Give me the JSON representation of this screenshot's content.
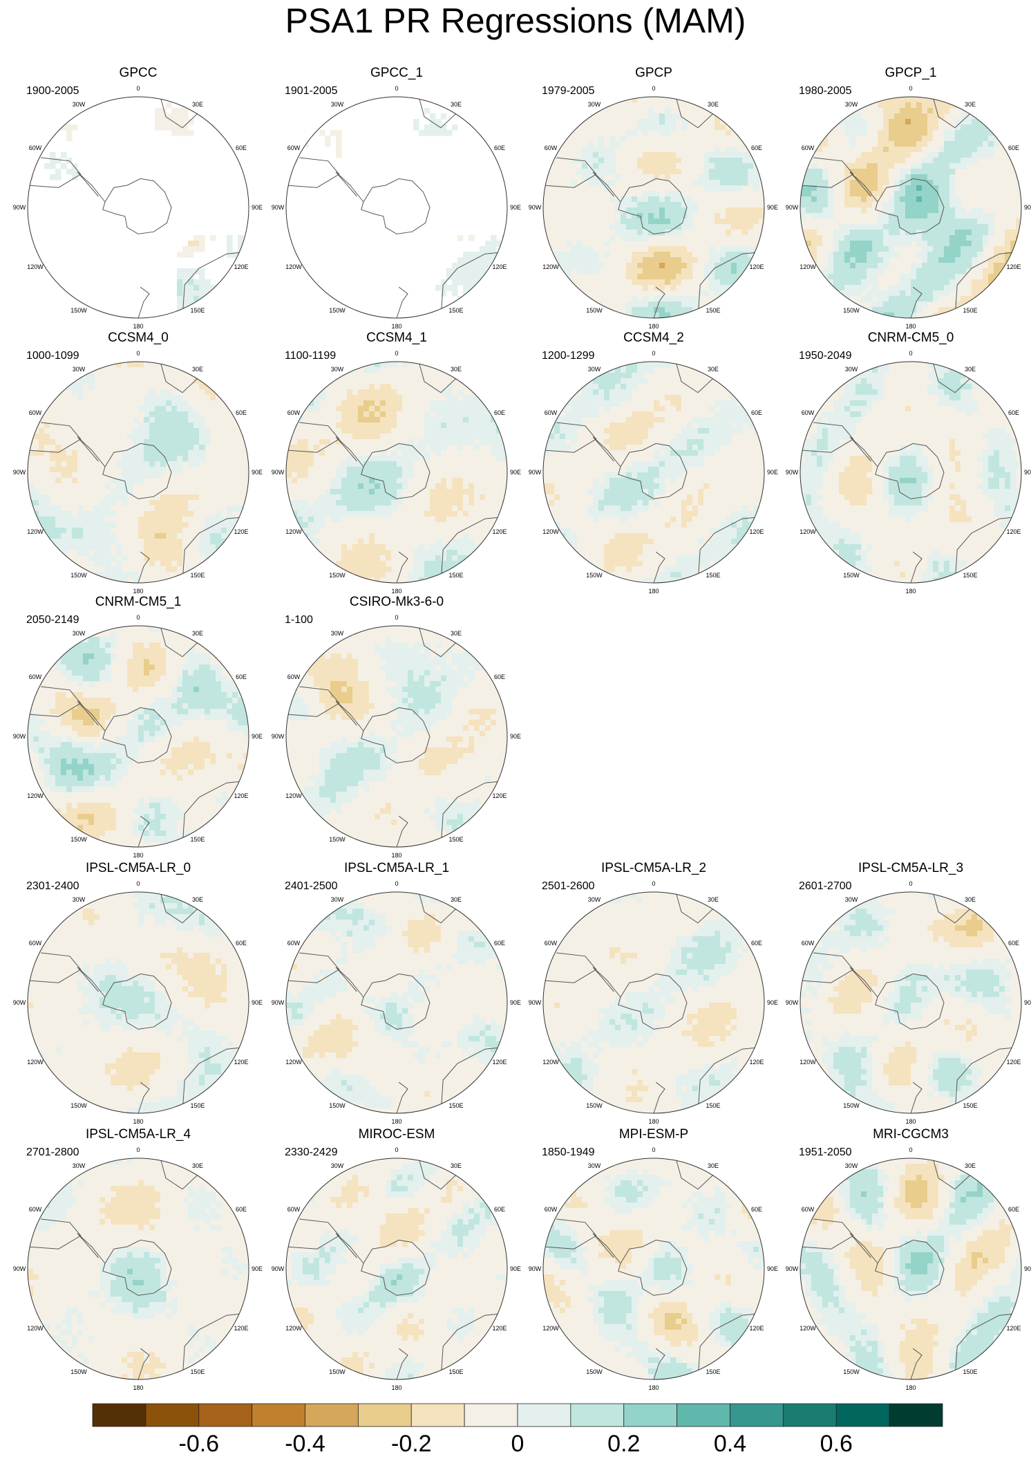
{
  "title": "PSA1 PR Regressions (MAM)",
  "chart_data": {
    "type": "heatmap",
    "title": "PSA1 PR Regressions (MAM)",
    "projection": "south-polar-stereographic",
    "longitude_labels": [
      "0",
      "30E",
      "60E",
      "90E",
      "120E",
      "150E",
      "180",
      "150W",
      "120W",
      "90W",
      "60W",
      "30W"
    ],
    "panels": [
      {
        "name": "GPCC",
        "period": "1900-2005",
        "row": 0,
        "col": 0,
        "masked": true,
        "strength": 0.6
      },
      {
        "name": "GPCC_1",
        "period": "1901-2005",
        "row": 0,
        "col": 1,
        "masked": true,
        "strength": 0.6
      },
      {
        "name": "GPCP",
        "period": "1979-2005",
        "row": 0,
        "col": 2,
        "masked": false,
        "strength": 1.3
      },
      {
        "name": "GPCP_1",
        "period": "1980-2005",
        "row": 0,
        "col": 3,
        "masked": false,
        "strength": 1.45
      },
      {
        "name": "CCSM4_0",
        "period": "1000-1099",
        "row": 1,
        "col": 0,
        "masked": false,
        "strength": 0.8
      },
      {
        "name": "CCSM4_1",
        "period": "1100-1199",
        "row": 1,
        "col": 1,
        "masked": false,
        "strength": 0.85
      },
      {
        "name": "CCSM4_2",
        "period": "1200-1299",
        "row": 1,
        "col": 2,
        "masked": false,
        "strength": 0.85
      },
      {
        "name": "CNRM-CM5_0",
        "period": "1950-2049",
        "row": 1,
        "col": 3,
        "masked": false,
        "strength": 0.95
      },
      {
        "name": "CNRM-CM5_1",
        "period": "2050-2149",
        "row": 2,
        "col": 0,
        "masked": false,
        "strength": 1.0
      },
      {
        "name": "CSIRO-Mk3-6-0",
        "period": "1-100",
        "row": 2,
        "col": 1,
        "masked": false,
        "strength": 0.7
      },
      {
        "name": "IPSL-CM5A-LR_0",
        "period": "2301-2400",
        "row": 3,
        "col": 0,
        "masked": false,
        "strength": 0.8
      },
      {
        "name": "IPSL-CM5A-LR_1",
        "period": "2401-2500",
        "row": 3,
        "col": 1,
        "masked": false,
        "strength": 0.85
      },
      {
        "name": "IPSL-CM5A-LR_2",
        "period": "2501-2600",
        "row": 3,
        "col": 2,
        "masked": false,
        "strength": 0.75
      },
      {
        "name": "IPSL-CM5A-LR_3",
        "period": "2601-2700",
        "row": 3,
        "col": 3,
        "masked": false,
        "strength": 0.85
      },
      {
        "name": "IPSL-CM5A-LR_4",
        "period": "2701-2800",
        "row": 4,
        "col": 0,
        "masked": false,
        "strength": 0.75
      },
      {
        "name": "MIROC-ESM",
        "period": "2330-2429",
        "row": 4,
        "col": 1,
        "masked": false,
        "strength": 0.8
      },
      {
        "name": "MPI-ESM-P",
        "period": "1850-1949",
        "row": 4,
        "col": 2,
        "masked": false,
        "strength": 0.85
      },
      {
        "name": "MRI-CGCM3",
        "period": "1951-2050",
        "row": 4,
        "col": 3,
        "masked": false,
        "strength": 1.1
      }
    ],
    "colorbar": {
      "levels": [
        -0.7,
        -0.6,
        -0.5,
        -0.4,
        -0.3,
        -0.2,
        -0.1,
        0,
        0.1,
        0.2,
        0.3,
        0.4,
        0.5,
        0.6,
        0.7
      ],
      "tick_values": [
        -0.6,
        -0.4,
        -0.2,
        0,
        0.2,
        0.4,
        0.6
      ],
      "tick_labels": [
        "-0.6",
        "-0.4",
        "-0.2",
        "0",
        "0.2",
        "0.4",
        "0.6"
      ],
      "colors": [
        "#543005",
        "#8c510a",
        "#a6611a",
        "#bf812d",
        "#d5a75b",
        "#e8cd8c",
        "#f5e3bf",
        "#f5f0e6",
        "#e3f0ee",
        "#c0e6df",
        "#94d3c8",
        "#5fb8ab",
        "#35978f",
        "#1b7c72",
        "#01665e",
        "#003c30"
      ]
    }
  }
}
